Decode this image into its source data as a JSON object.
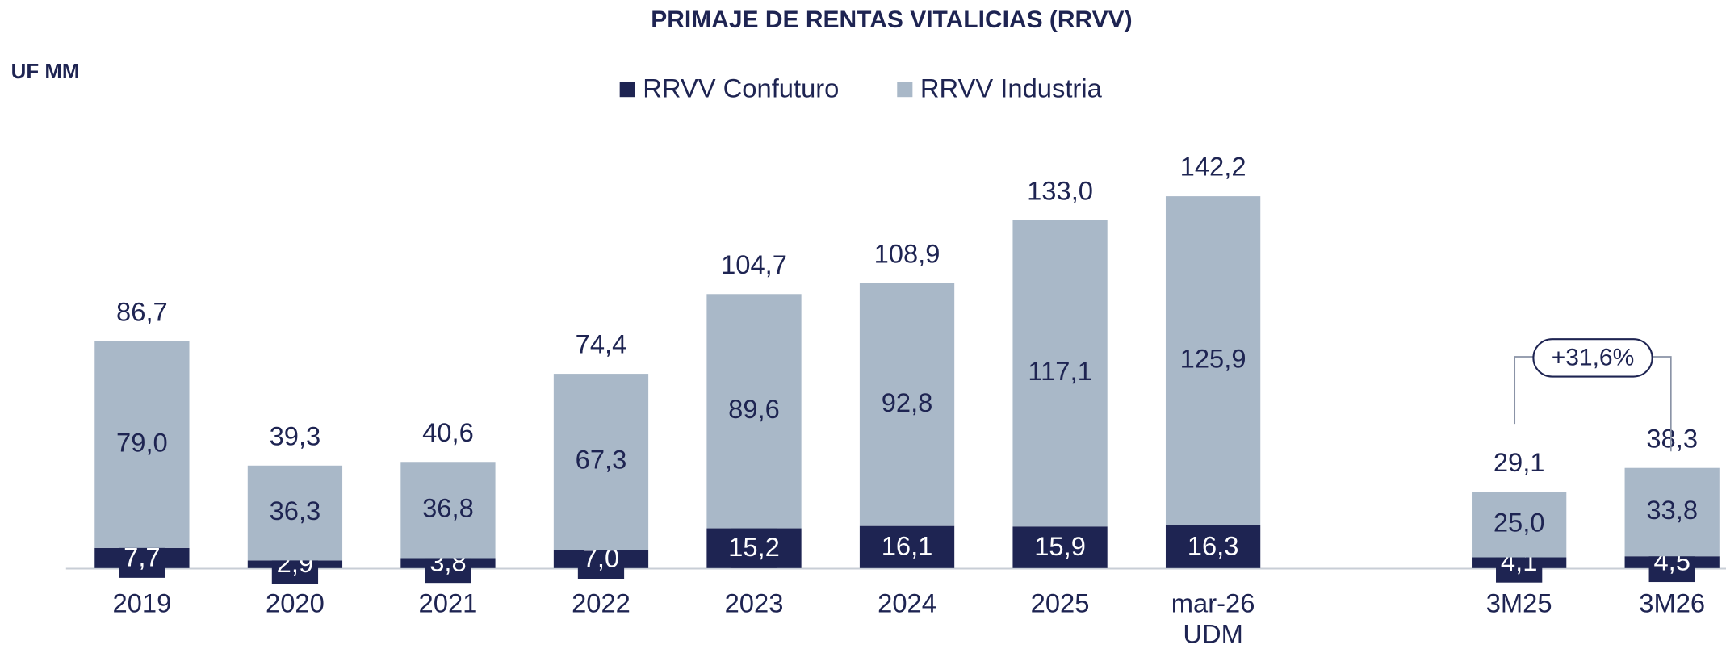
{
  "chart_data": {
    "type": "stacked_bar",
    "title": "PRIMAJE DE RENTAS VITALICIAS (RRVV)",
    "unit_label": "UF MM",
    "categories": [
      "2019",
      "2020",
      "2021",
      "2022",
      "2023",
      "2024",
      "2025",
      "mar-26\nUDM",
      null,
      "3M25",
      "3M26"
    ],
    "series": [
      {
        "name": "RRVV Confuturo",
        "color": "#1e2452",
        "values": [
          7.7,
          2.9,
          3.8,
          7.0,
          15.2,
          16.1,
          15.9,
          16.3,
          null,
          4.1,
          4.5
        ],
        "value_labels": [
          "7,7",
          "2,9",
          "3,8",
          "7,0",
          "15,2",
          "16,1",
          "15,9",
          "16,3",
          null,
          "4,1",
          "4,5"
        ]
      },
      {
        "name": "RRVV Industria",
        "color": "#a9b8c8",
        "values": [
          79.0,
          36.3,
          36.8,
          67.3,
          89.6,
          92.8,
          117.1,
          125.9,
          null,
          25.0,
          33.8
        ],
        "value_labels": [
          "79,0",
          "36,3",
          "36,8",
          "67,3",
          "89,6",
          "92,8",
          "117,1",
          "125,9",
          null,
          "25,0",
          "33,8"
        ]
      }
    ],
    "totals": [
      86.7,
      39.3,
      40.6,
      74.4,
      104.7,
      108.9,
      133.0,
      142.2,
      null,
      29.1,
      38.3
    ],
    "total_labels": [
      "86,7",
      "39,3",
      "40,6",
      "74,4",
      "104,7",
      "108,9",
      "133,0",
      "142,2",
      null,
      "29,1",
      "38,3"
    ],
    "annotation": "+31,6%",
    "legend": "top"
  }
}
